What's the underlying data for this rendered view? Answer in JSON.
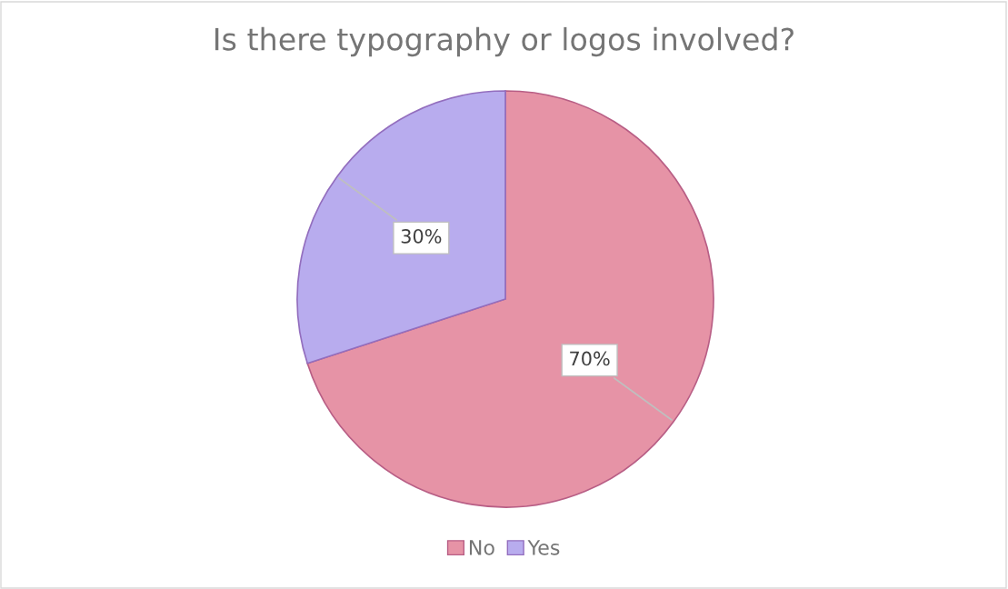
{
  "chart_data": {
    "type": "pie",
    "title": "Is there typography or logos involved?",
    "categories": [
      "No",
      "Yes"
    ],
    "values": [
      70,
      30
    ],
    "colors": [
      "#e693a6",
      "#b8acee"
    ],
    "value_labels": [
      "70%",
      "30%"
    ],
    "legend": "bottom"
  }
}
